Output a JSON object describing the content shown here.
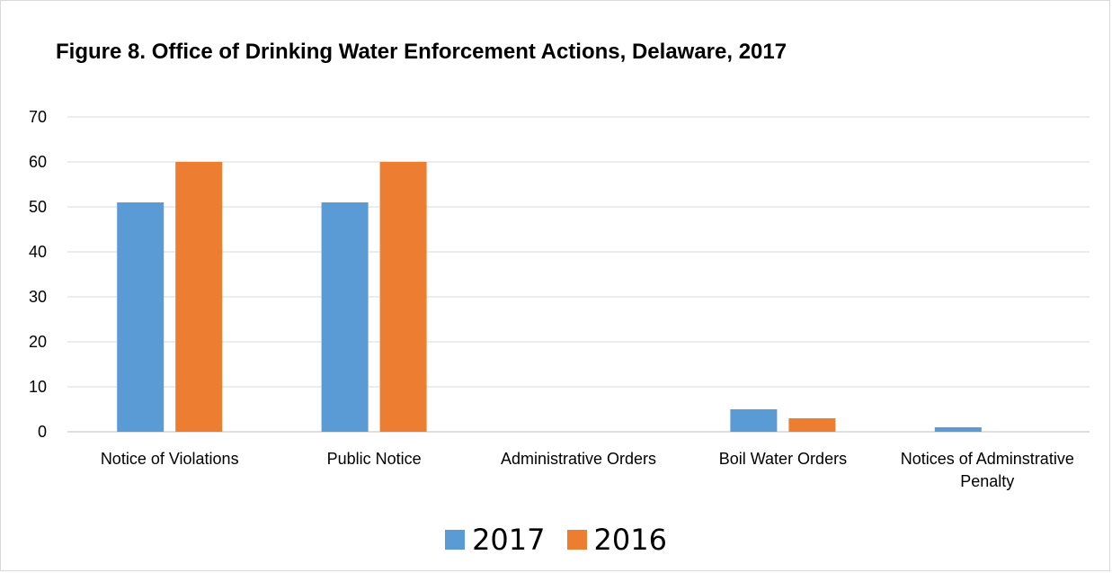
{
  "chart_data": {
    "type": "bar",
    "title": "Figure 8. Office of Drinking Water Enforcement Actions, Delaware, 2017",
    "categories": [
      "Notice of Violations",
      "Public Notice",
      "Administrative Orders",
      "Boil Water Orders",
      "Notices of Adminstrative Penalty"
    ],
    "series": [
      {
        "name": "2017",
        "color": "#5b9bd5",
        "values": [
          51,
          51,
          0,
          5,
          1
        ]
      },
      {
        "name": "2016",
        "color": "#ed7d31",
        "values": [
          60,
          60,
          0,
          3,
          0
        ]
      }
    ],
    "xlabel": "",
    "ylabel": "",
    "ylim": [
      0,
      70
    ],
    "yticks": [
      "0",
      "10",
      "20",
      "30",
      "40",
      "50",
      "60",
      "70"
    ],
    "grid": true,
    "legend": "bottom"
  }
}
